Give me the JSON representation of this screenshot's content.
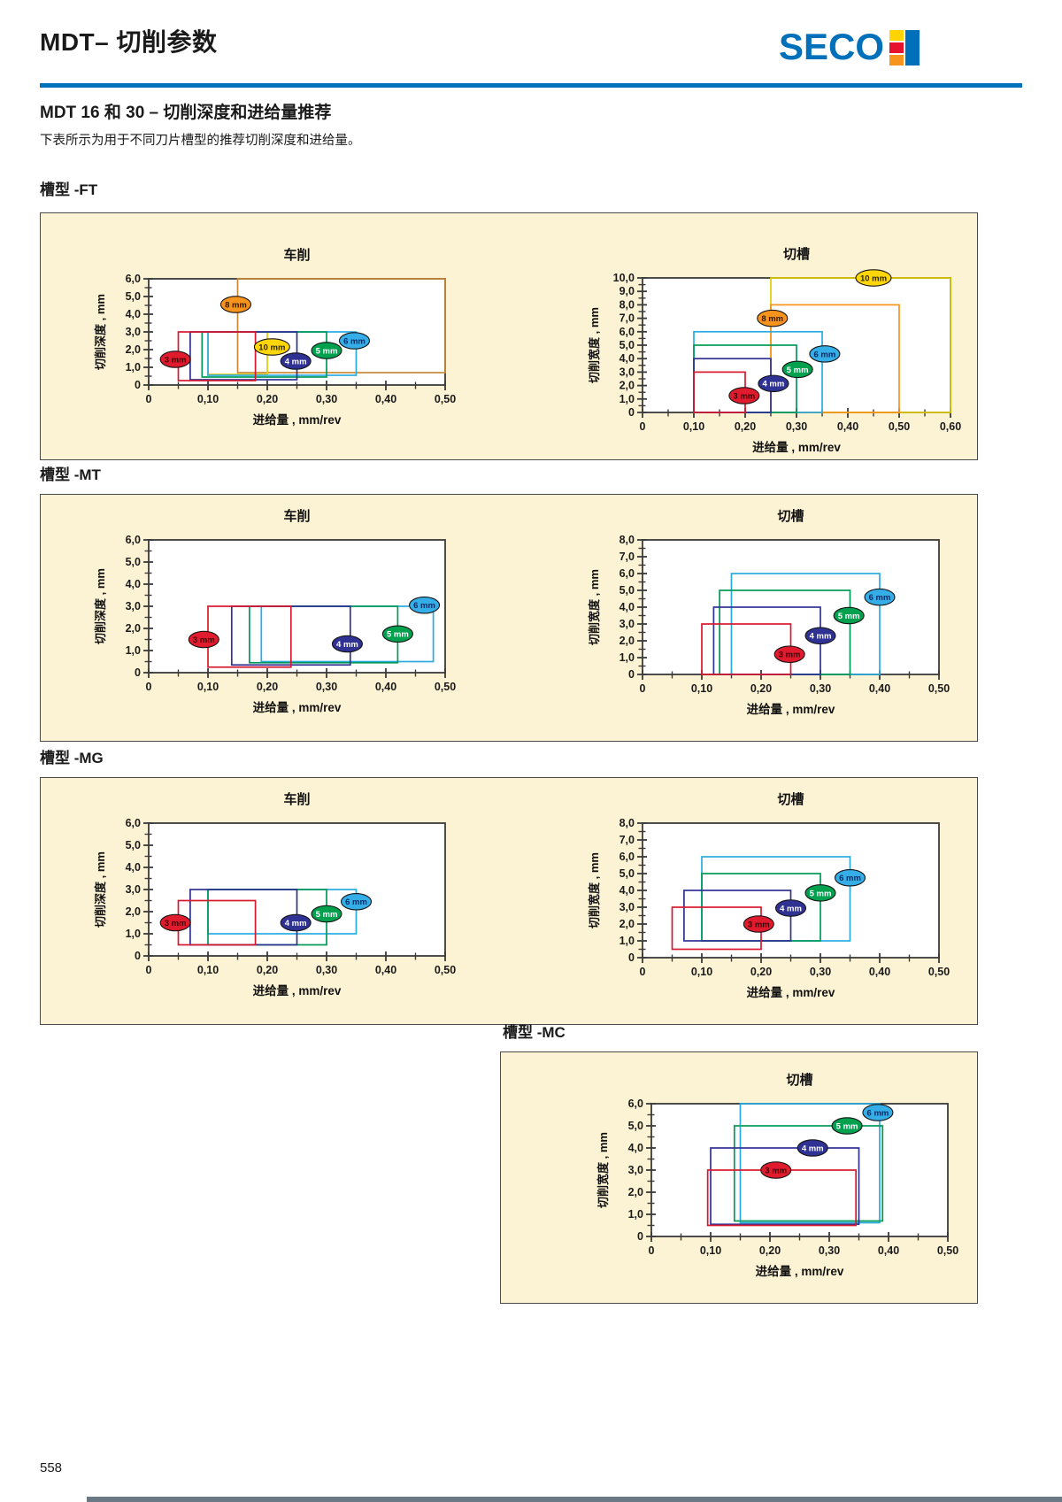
{
  "page": {
    "title": "MDT– 切削参数",
    "subtitle": "MDT 16 和 30 – 切削深度和进给量推荐",
    "intro": "下表所示为用于不同刀片槽型的推荐切削深度和进给量。",
    "page_number": "558",
    "logo_text": "SECO"
  },
  "colors": {
    "accent_blue": "#0072bc",
    "logo_blue": "#0070ba",
    "panel_bg": "#fcf3d4",
    "axis": "#3a3a3a",
    "logo_squares": [
      "#ffd400",
      "#e8112d",
      "#f7941d",
      "#0070ba"
    ],
    "box_stroke": {
      "red": "#d8182e",
      "navy": "#2f3193",
      "green": "#009a58",
      "cyan": "#29abe2",
      "yellow": "#e0cc00",
      "orange": "#f7941d",
      "tan": "#c8883a"
    },
    "label_fill": {
      "red": "#e11b2e",
      "navy": "#2f3193",
      "green": "#00a14e",
      "cyan": "#35aee8",
      "yellow": "#ffd60a",
      "orange": "#f7941d",
      "tan": "#f7941d"
    },
    "label_text": {
      "red": "#3c0008",
      "navy": "#ffffff",
      "green": "#ffffff",
      "cyan": "#0a2a66",
      "yellow": "#2e2800",
      "orange": "#2e1a00",
      "tan": "#2e1a00"
    }
  },
  "sections": [
    {
      "label": "槽型 -FT"
    },
    {
      "label": "槽型 -MT"
    },
    {
      "label": "槽型 -MG"
    },
    {
      "label": "槽型 -MC"
    }
  ],
  "chart_data": [
    {
      "id": "ft_turning",
      "type": "box-range",
      "title": "车削",
      "xlabel": "进给量 , mm/rev",
      "ylabel": "切削深度 , mm",
      "xlim": [
        0,
        0.5
      ],
      "ylim": [
        0,
        6
      ],
      "xticks": [
        "0",
        "0,10",
        "0,20",
        "0,30",
        "0,40",
        "0,50"
      ],
      "yticks": [
        "0",
        "1,0",
        "2,0",
        "3,0",
        "4,0",
        "5,0",
        "6,0"
      ],
      "boxes": [
        {
          "size": "8 mm",
          "color": "tan",
          "label_color": "orange",
          "x": [
            0.15,
            0.5
          ],
          "y": [
            0.7,
            6.0
          ],
          "label": [
            0.147,
            4.55
          ]
        },
        {
          "size": "10 mm",
          "color": "yellow",
          "x": [
            0.1,
            0.2
          ],
          "y": [
            0.6,
            3.0
          ],
          "label": [
            0.208,
            2.15
          ]
        },
        {
          "size": "6 mm",
          "color": "cyan",
          "x": [
            0.1,
            0.35
          ],
          "y": [
            0.55,
            3.0
          ],
          "label": [
            0.347,
            2.5
          ]
        },
        {
          "size": "5 mm",
          "color": "green",
          "x": [
            0.09,
            0.3
          ],
          "y": [
            0.45,
            3.0
          ],
          "label": [
            0.3,
            1.95
          ]
        },
        {
          "size": "4 mm",
          "color": "navy",
          "x": [
            0.07,
            0.25
          ],
          "y": [
            0.3,
            3.0
          ],
          "label": [
            0.248,
            1.35
          ]
        },
        {
          "size": "3 mm",
          "color": "red",
          "x": [
            0.05,
            0.18
          ],
          "y": [
            0.25,
            3.0
          ],
          "label": [
            0.045,
            1.45
          ]
        }
      ]
    },
    {
      "id": "ft_grooving",
      "type": "box-range",
      "title": "切槽",
      "xlabel": "进给量 , mm/rev",
      "ylabel": "切削宽度 , mm",
      "xlim": [
        0,
        0.6
      ],
      "ylim": [
        0,
        10
      ],
      "xticks": [
        "0",
        "0,10",
        "0,20",
        "0,30",
        "0,40",
        "0,50",
        "0,60"
      ],
      "yticks": [
        "0",
        "1,0",
        "2,0",
        "3,0",
        "4,0",
        "5,0",
        "6,0",
        "7,0",
        "8,0",
        "9,0",
        "10,0"
      ],
      "boxes": [
        {
          "size": "10 mm",
          "color": "yellow",
          "x": [
            0.25,
            0.6
          ],
          "y": [
            0,
            10.0
          ],
          "label": [
            0.45,
            10.0
          ]
        },
        {
          "size": "8 mm",
          "color": "orange",
          "x": [
            0.25,
            0.5
          ],
          "y": [
            0,
            8.0
          ],
          "label": [
            0.253,
            7.0
          ]
        },
        {
          "size": "6 mm",
          "color": "cyan",
          "x": [
            0.1,
            0.35
          ],
          "y": [
            0,
            6.0
          ],
          "label": [
            0.355,
            4.35
          ]
        },
        {
          "size": "5 mm",
          "color": "green",
          "x": [
            0.1,
            0.3
          ],
          "y": [
            0,
            5.0
          ],
          "label": [
            0.302,
            3.2
          ]
        },
        {
          "size": "4 mm",
          "color": "navy",
          "x": [
            0.1,
            0.25
          ],
          "y": [
            0,
            4.0
          ],
          "label": [
            0.255,
            2.15
          ]
        },
        {
          "size": "3 mm",
          "color": "red",
          "x": [
            0.1,
            0.2
          ],
          "y": [
            0,
            3.0
          ],
          "label": [
            0.198,
            1.25
          ]
        }
      ]
    },
    {
      "id": "mt_turning",
      "type": "box-range",
      "title": "车削",
      "xlabel": "进给量 , mm/rev",
      "ylabel": "切削深度 , mm",
      "xlim": [
        0,
        0.5
      ],
      "ylim": [
        0,
        6
      ],
      "xticks": [
        "0",
        "0,10",
        "0,20",
        "0,30",
        "0,40",
        "0,50"
      ],
      "yticks": [
        "0",
        "1,0",
        "2,0",
        "3,0",
        "4,0",
        "5,0",
        "6,0"
      ],
      "boxes": [
        {
          "size": "6 mm",
          "color": "cyan",
          "x": [
            0.19,
            0.48
          ],
          "y": [
            0.5,
            3.0
          ],
          "label": [
            0.465,
            3.05
          ]
        },
        {
          "size": "5 mm",
          "color": "green",
          "x": [
            0.17,
            0.42
          ],
          "y": [
            0.45,
            3.0
          ],
          "label": [
            0.42,
            1.75
          ]
        },
        {
          "size": "4 mm",
          "color": "navy",
          "x": [
            0.14,
            0.34
          ],
          "y": [
            0.35,
            3.0
          ],
          "label": [
            0.335,
            1.3
          ]
        },
        {
          "size": "3 mm",
          "color": "red",
          "x": [
            0.1,
            0.24
          ],
          "y": [
            0.25,
            3.0
          ],
          "label": [
            0.093,
            1.5
          ]
        }
      ]
    },
    {
      "id": "mt_grooving",
      "type": "box-range",
      "title": "切槽",
      "xlabel": "进给量 , mm/rev",
      "ylabel": "切削宽度 , mm",
      "xlim": [
        0,
        0.5
      ],
      "ylim": [
        0,
        8
      ],
      "xticks": [
        "0",
        "0,10",
        "0,20",
        "0,30",
        "0,40",
        "0,50"
      ],
      "yticks": [
        "0",
        "1,0",
        "2,0",
        "3,0",
        "4,0",
        "5,0",
        "6,0",
        "7,0",
        "8,0"
      ],
      "boxes": [
        {
          "size": "6 mm",
          "color": "cyan",
          "x": [
            0.15,
            0.4
          ],
          "y": [
            0,
            6.0
          ],
          "label": [
            0.4,
            4.6
          ]
        },
        {
          "size": "5 mm",
          "color": "green",
          "x": [
            0.13,
            0.35
          ],
          "y": [
            0,
            5.0
          ],
          "label": [
            0.348,
            3.5
          ]
        },
        {
          "size": "4 mm",
          "color": "navy",
          "x": [
            0.12,
            0.3
          ],
          "y": [
            0,
            4.0
          ],
          "label": [
            0.3,
            2.3
          ]
        },
        {
          "size": "3 mm",
          "color": "red",
          "x": [
            0.1,
            0.25
          ],
          "y": [
            0,
            3.0
          ],
          "label": [
            0.248,
            1.2
          ]
        }
      ]
    },
    {
      "id": "mg_turning",
      "type": "box-range",
      "title": "车削",
      "xlabel": "进给量 , mm/rev",
      "ylabel": "切削深度 , mm",
      "xlim": [
        0,
        0.5
      ],
      "ylim": [
        0,
        6
      ],
      "xticks": [
        "0",
        "0,10",
        "0,20",
        "0,30",
        "0,40",
        "0,50"
      ],
      "yticks": [
        "0",
        "1,0",
        "2,0",
        "3,0",
        "4,0",
        "5,0",
        "6,0"
      ],
      "boxes": [
        {
          "size": "6 mm",
          "color": "cyan",
          "x": [
            0.1,
            0.35
          ],
          "y": [
            1.0,
            3.0
          ],
          "label": [
            0.35,
            2.45
          ]
        },
        {
          "size": "5 mm",
          "color": "green",
          "x": [
            0.1,
            0.3
          ],
          "y": [
            0.5,
            3.0
          ],
          "label": [
            0.3,
            1.9
          ]
        },
        {
          "size": "4 mm",
          "color": "navy",
          "x": [
            0.07,
            0.25
          ],
          "y": [
            0.5,
            3.0
          ],
          "label": [
            0.248,
            1.5
          ]
        },
        {
          "size": "3 mm",
          "color": "red",
          "x": [
            0.05,
            0.18
          ],
          "y": [
            0.5,
            2.5
          ],
          "label": [
            0.045,
            1.5
          ]
        }
      ]
    },
    {
      "id": "mg_grooving",
      "type": "box-range",
      "title": "切槽",
      "xlabel": "进给量 , mm/rev",
      "ylabel": "切削宽度 , mm",
      "xlim": [
        0,
        0.5
      ],
      "ylim": [
        0,
        8
      ],
      "xticks": [
        "0",
        "0,10",
        "0,20",
        "0,30",
        "0,40",
        "0,50"
      ],
      "yticks": [
        "0",
        "1,0",
        "2,0",
        "3,0",
        "4,0",
        "5,0",
        "6,0",
        "7,0",
        "8,0"
      ],
      "boxes": [
        {
          "size": "6 mm",
          "color": "cyan",
          "x": [
            0.1,
            0.35
          ],
          "y": [
            1.0,
            6.0
          ],
          "label": [
            0.35,
            4.75
          ]
        },
        {
          "size": "5 mm",
          "color": "green",
          "x": [
            0.1,
            0.3
          ],
          "y": [
            1.0,
            5.0
          ],
          "label": [
            0.3,
            3.85
          ]
        },
        {
          "size": "4 mm",
          "color": "navy",
          "x": [
            0.07,
            0.25
          ],
          "y": [
            1.0,
            4.0
          ],
          "label": [
            0.25,
            2.95
          ]
        },
        {
          "size": "3 mm",
          "color": "red",
          "x": [
            0.05,
            0.2
          ],
          "y": [
            0.5,
            3.0
          ],
          "label": [
            0.196,
            2.0
          ]
        }
      ]
    },
    {
      "id": "mc_grooving",
      "type": "box-range",
      "title": "切槽",
      "xlabel": "进给量 , mm/rev",
      "ylabel": "切削宽度 , mm",
      "xlim": [
        0,
        0.5
      ],
      "ylim": [
        0,
        6
      ],
      "xticks": [
        "0",
        "0,10",
        "0,20",
        "0,30",
        "0,40",
        "0,50"
      ],
      "yticks": [
        "0",
        "1,0",
        "2,0",
        "3,0",
        "4,0",
        "5,0",
        "6,0"
      ],
      "boxes": [
        {
          "size": "6 mm",
          "color": "cyan",
          "x": [
            0.15,
            0.385
          ],
          "y": [
            0.62,
            6.0
          ],
          "label": [
            0.382,
            5.6
          ]
        },
        {
          "size": "5 mm",
          "color": "green",
          "x": [
            0.14,
            0.39
          ],
          "y": [
            0.7,
            5.0
          ],
          "label": [
            0.33,
            5.0
          ]
        },
        {
          "size": "4 mm",
          "color": "navy",
          "x": [
            0.1,
            0.35
          ],
          "y": [
            0.55,
            4.0
          ],
          "label": [
            0.272,
            4.0
          ]
        },
        {
          "size": "3 mm",
          "color": "red",
          "x": [
            0.095,
            0.345
          ],
          "y": [
            0.5,
            3.0
          ],
          "label": [
            0.21,
            3.0
          ]
        }
      ]
    }
  ]
}
